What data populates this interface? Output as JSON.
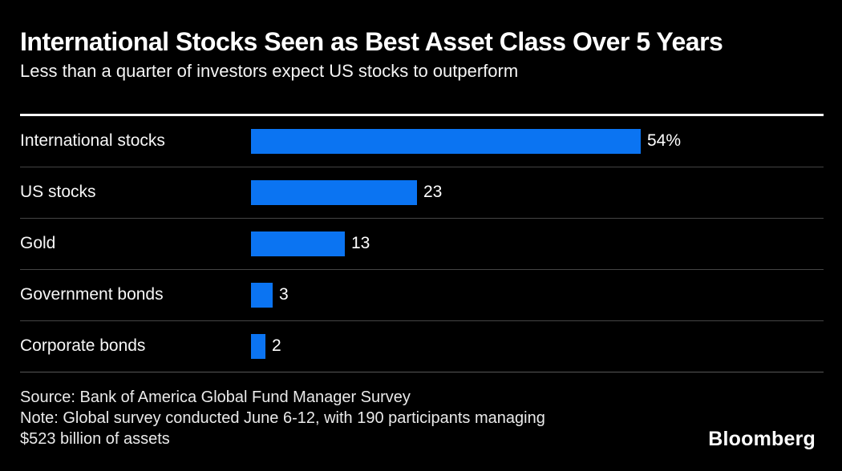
{
  "header": {
    "title": "International Stocks Seen as Best Asset Class Over 5 Years",
    "subtitle": "Less than a quarter of investors expect US stocks to outperform"
  },
  "chart_data": {
    "type": "bar",
    "orientation": "horizontal",
    "title": "International Stocks Seen as Best Asset Class Over 5 Years",
    "subtitle": "Less than a quarter of investors expect US stocks to outperform",
    "categories": [
      "International stocks",
      "US stocks",
      "Gold",
      "Government bonds",
      "Corporate bonds"
    ],
    "values": [
      54,
      23,
      13,
      3,
      2
    ],
    "value_labels": [
      "54%",
      "23",
      "13",
      "3",
      "2"
    ],
    "unit": "percent of surveyed investors",
    "xlim": [
      0,
      54
    ],
    "grid": false,
    "legend": false,
    "bar_color": "#0B74F2"
  },
  "footer": {
    "source": "Source: Bank of America Global Fund Manager Survey",
    "note_lines": [
      "Note: Global survey conducted June 6-12, with 190 participants managing",
      "$523 billion of assets"
    ],
    "brand": "Bloomberg"
  },
  "colors": {
    "background": "#000000",
    "bar": "#0B74F2",
    "title_text": "#FFFFFF",
    "body_text": "#F2F2F2",
    "separator": "#444444",
    "header_rule": "#FFFFFF"
  }
}
